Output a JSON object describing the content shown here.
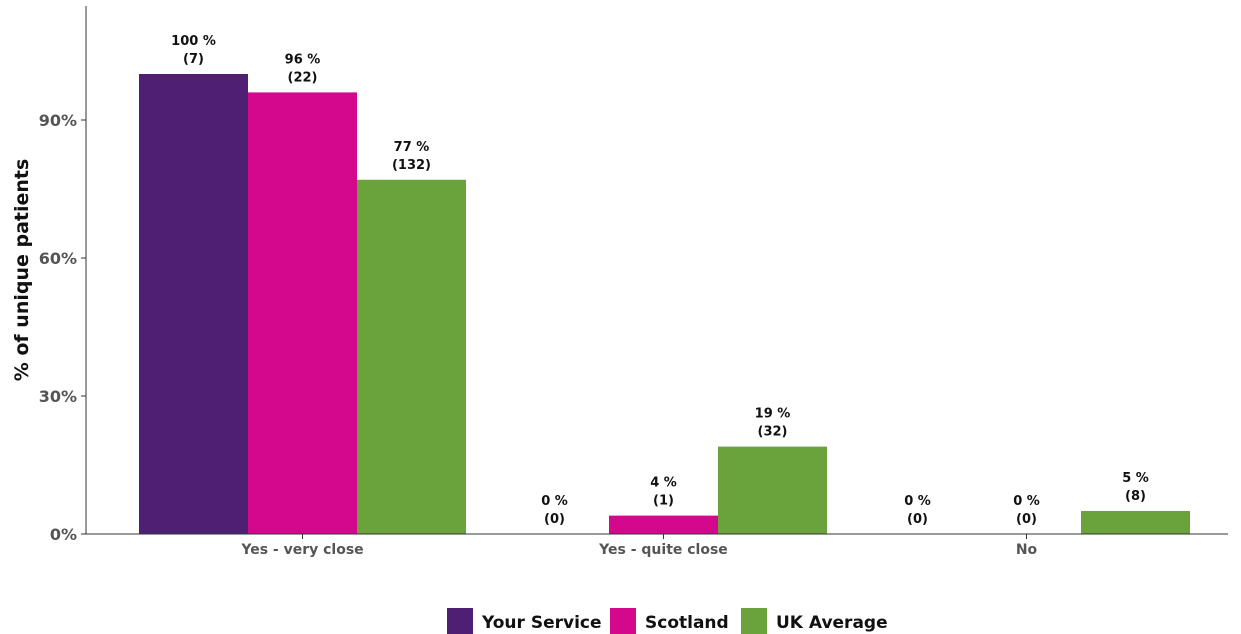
{
  "chart_data": {
    "type": "bar",
    "title": "",
    "xlabel": "",
    "ylabel": "% of unique patients",
    "ylim": [
      0,
      112
    ],
    "y_ticks": [
      0,
      30,
      60,
      90
    ],
    "y_tick_labels": [
      "0%",
      "30%",
      "60%",
      "90%"
    ],
    "grid": false,
    "legend_position": "bottom",
    "categories": [
      "Yes - very close",
      "Yes - quite close",
      "No"
    ],
    "series": [
      {
        "name": "Your Service",
        "color": "#4e1f72",
        "values": [
          100,
          0,
          0
        ],
        "labels": [
          [
            "100 %",
            "(7)"
          ],
          [
            "0 %",
            "(0)"
          ],
          [
            "0 %",
            "(0)"
          ]
        ]
      },
      {
        "name": "Scotland",
        "color": "#d4088d",
        "values": [
          96,
          4,
          0
        ],
        "labels": [
          [
            "96 %",
            "(22)"
          ],
          [
            "4 %",
            "(1)"
          ],
          [
            "0 %",
            "(0)"
          ]
        ]
      },
      {
        "name": "UK Average",
        "color": "#6aa23b",
        "values": [
          77,
          19,
          5
        ],
        "labels": [
          [
            "77 %",
            "(132)"
          ],
          [
            "19 %",
            "(32)"
          ],
          [
            "5 %",
            "(8)"
          ]
        ]
      }
    ]
  }
}
